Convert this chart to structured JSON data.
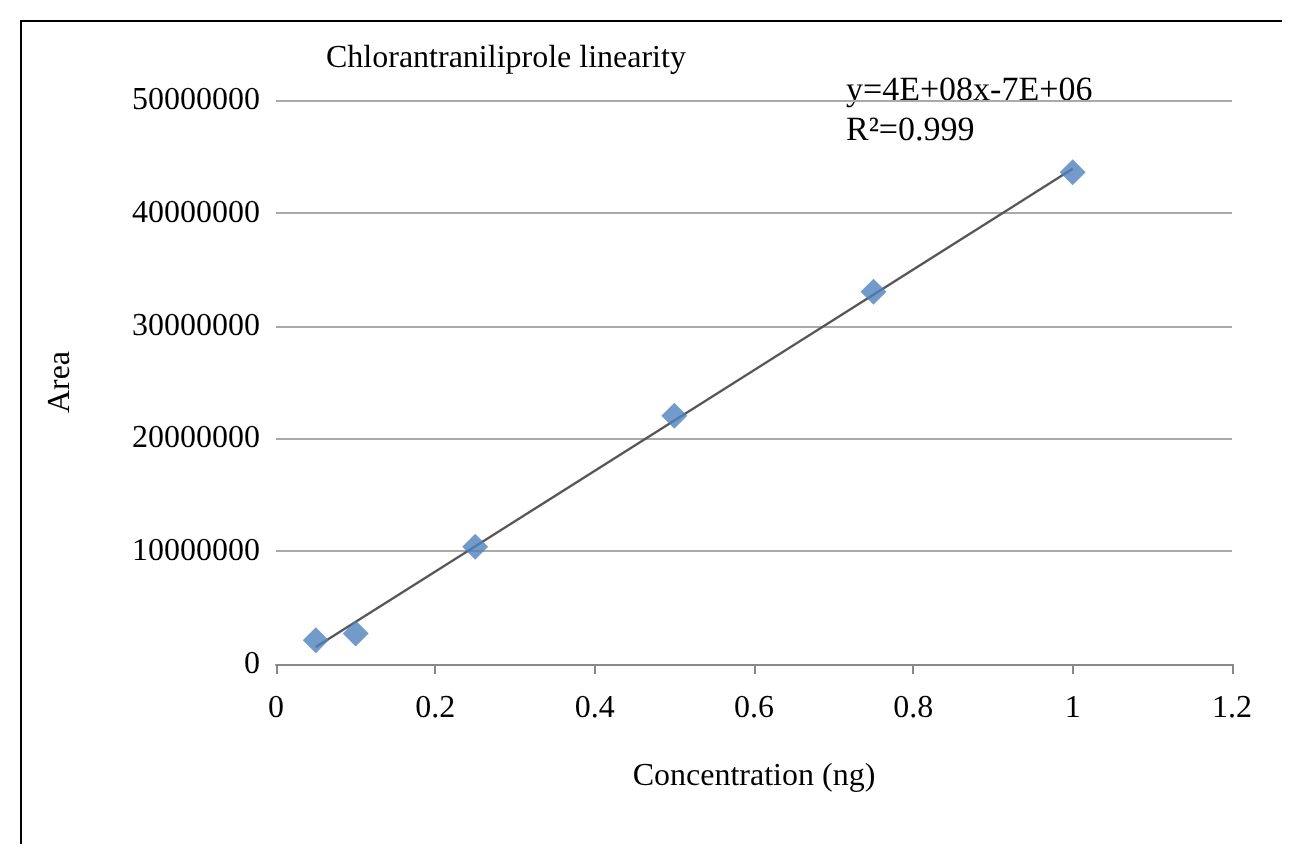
{
  "chart_data": {
    "type": "scatter",
    "title": "Chlorantraniliprole linearity",
    "xlabel": "Concentration (ng)",
    "ylabel": "Area",
    "x": [
      0.05,
      0.1,
      0.25,
      0.5,
      0.75,
      1
    ],
    "series": [
      {
        "color": "#4f81bd",
        "marker": "diamond",
        "values": [
          2100000,
          2700000,
          10400000,
          22000000,
          33000000,
          43600000
        ]
      },
      {
        "type": "line",
        "color": "#555555",
        "marker": "none",
        "x": [
          0.05,
          1
        ],
        "values": [
          1500000,
          43900000
        ]
      }
    ],
    "annotations": [
      "y=4E+08x-7E+06",
      "R²=0.999"
    ],
    "xlim": [
      0,
      1.2
    ],
    "xticks": [
      0,
      0.2,
      0.4,
      0.6,
      0.8,
      1,
      1.2
    ],
    "ylim": [
      0,
      50000000
    ],
    "yticks": [
      0,
      10000000,
      20000000,
      30000000,
      40000000,
      50000000
    ],
    "grid": "y"
  }
}
